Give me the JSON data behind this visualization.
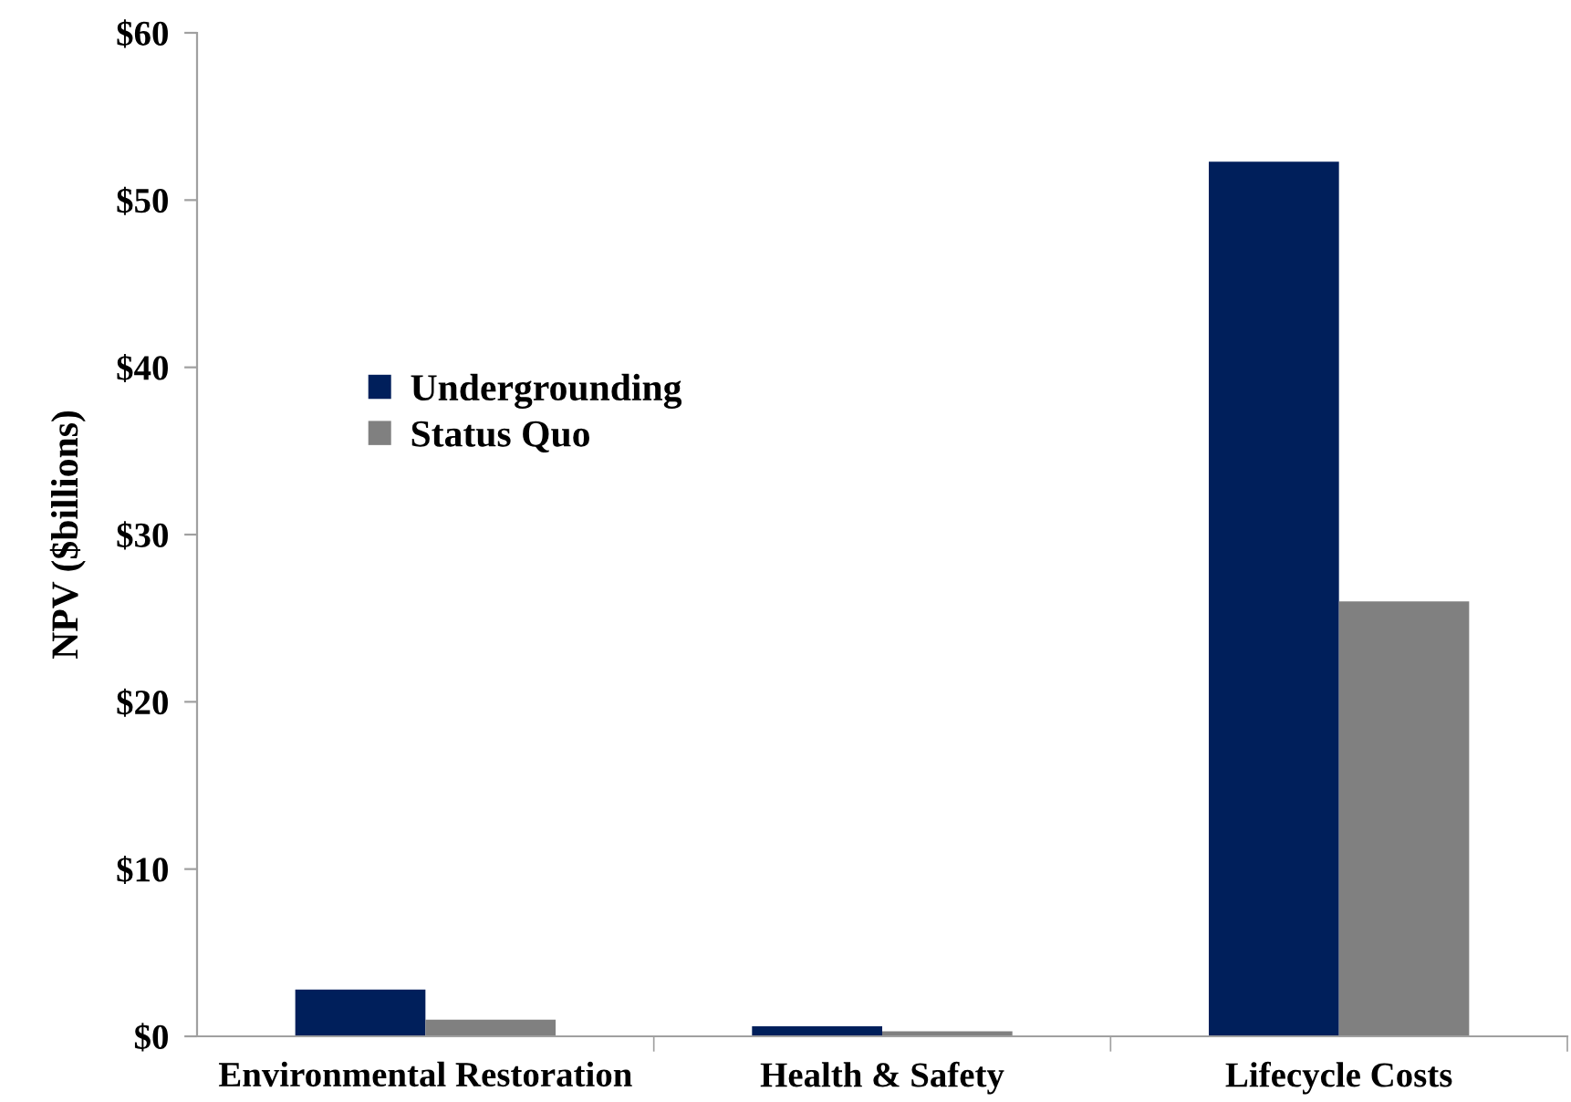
{
  "chart_data": {
    "type": "bar",
    "ylabel": "NPV ($billions)",
    "categories": [
      "Environmental Restoration",
      "Health & Safety",
      "Lifecycle Costs"
    ],
    "series": [
      {
        "name": "Undergrounding",
        "color": "#001f5b",
        "values": [
          2.8,
          0.6,
          52.3
        ]
      },
      {
        "name": "Status Quo",
        "color": "#808080",
        "values": [
          1.0,
          0.3,
          26.0
        ]
      }
    ],
    "ylim": [
      0,
      60
    ],
    "yticks": [
      {
        "value": 0,
        "label": "$0"
      },
      {
        "value": 10,
        "label": "$10"
      },
      {
        "value": 20,
        "label": "$20"
      },
      {
        "value": 30,
        "label": "$30"
      },
      {
        "value": 40,
        "label": "$40"
      },
      {
        "value": 50,
        "label": "$50"
      },
      {
        "value": 60,
        "label": "$60"
      }
    ],
    "grid": false,
    "legend": "left"
  }
}
